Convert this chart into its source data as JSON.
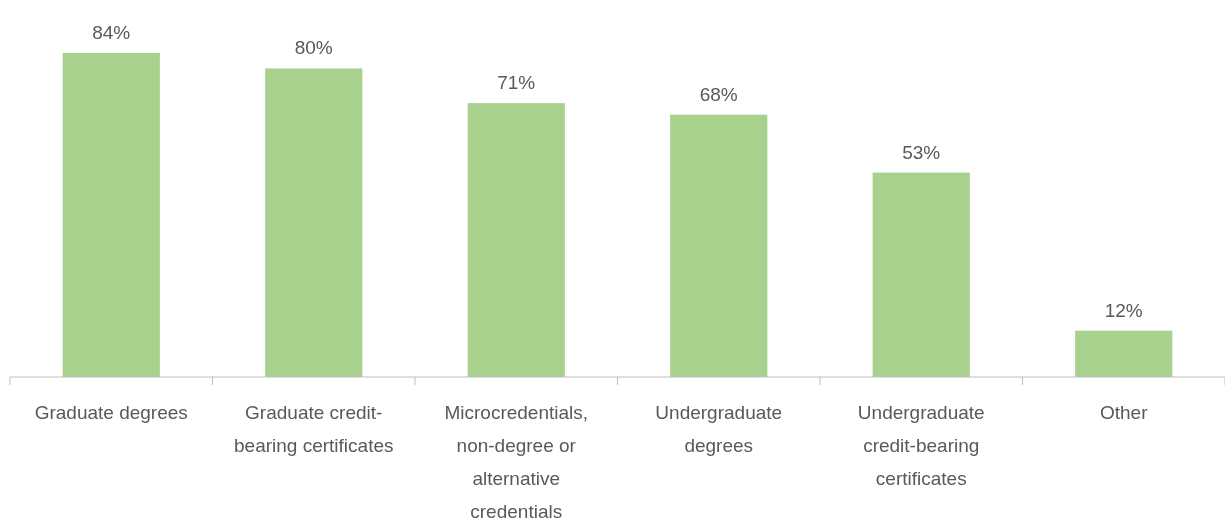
{
  "chart_data": {
    "type": "bar",
    "categories": [
      "Graduate degrees",
      "Graduate credit-bearing certificates",
      "Microcredentials, non-degree or alternative credentials",
      "Undergraduate degrees",
      "Undergraduate credit-bearing certificates",
      "Other"
    ],
    "values": [
      84,
      80,
      71,
      68,
      53,
      12
    ],
    "color": "#a9d18e",
    "value_labels": [
      "84%",
      "80%",
      "71%",
      "68%",
      "53%",
      "12%"
    ]
  }
}
